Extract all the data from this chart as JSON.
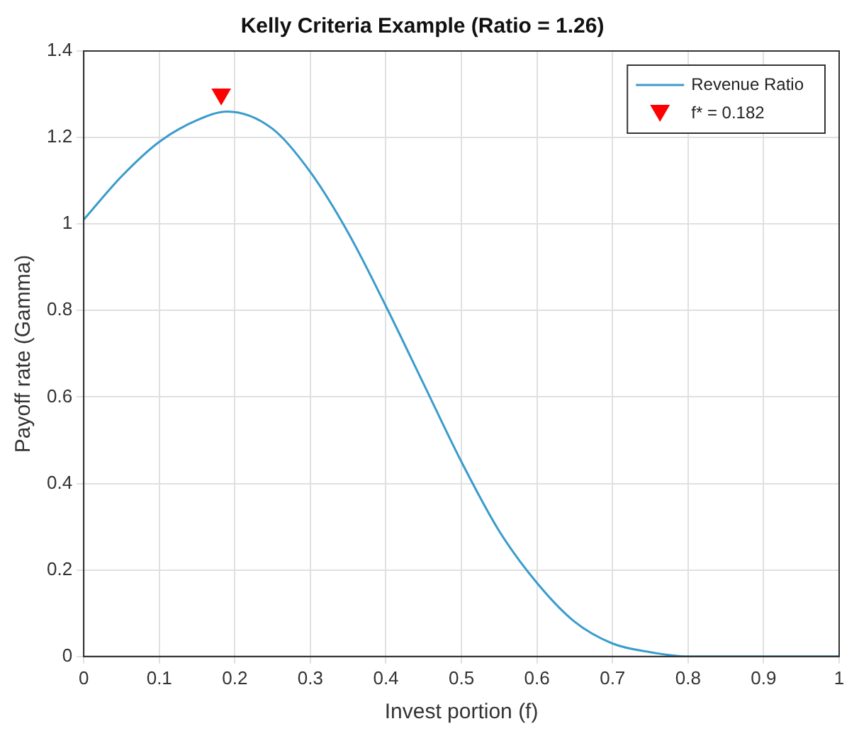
{
  "chart_data": {
    "type": "line",
    "title": "Kelly Criteria Example (Ratio = 1.26)",
    "xlabel": "Invest portion (f)",
    "ylabel": "Payoff rate (Gamma)",
    "x": [
      0,
      0.05,
      0.1,
      0.15,
      0.19,
      0.25,
      0.3,
      0.35,
      0.4,
      0.45,
      0.5,
      0.55,
      0.6,
      0.65,
      0.7,
      0.75,
      0.8,
      0.85,
      0.9,
      0.95,
      1
    ],
    "series": [
      {
        "name": "Revenue Ratio",
        "color": "#3a9ccc",
        "values": [
          1.01,
          1.11,
          1.19,
          1.24,
          1.26,
          1.22,
          1.12,
          0.98,
          0.81,
          0.63,
          0.45,
          0.29,
          0.17,
          0.08,
          0.03,
          0.01,
          0,
          0,
          0,
          0,
          0
        ],
        "marker": "none"
      },
      {
        "name": "f* = 0.182",
        "type": "scatter",
        "color": "#ff0000",
        "x": [
          0.182
        ],
        "values": [
          1.3
        ],
        "marker": "triangle"
      }
    ],
    "xlim": [
      0,
      1
    ],
    "xticks": [
      0,
      0.1,
      0.2,
      0.3,
      0.4,
      0.5,
      0.6,
      0.7,
      0.8,
      0.9,
      1
    ],
    "ylim": [
      0,
      1.4
    ],
    "yticks": [
      0,
      0.2,
      0.4,
      0.6,
      0.8,
      1,
      1.2,
      1.4
    ],
    "grid": true,
    "legend": "top right"
  }
}
